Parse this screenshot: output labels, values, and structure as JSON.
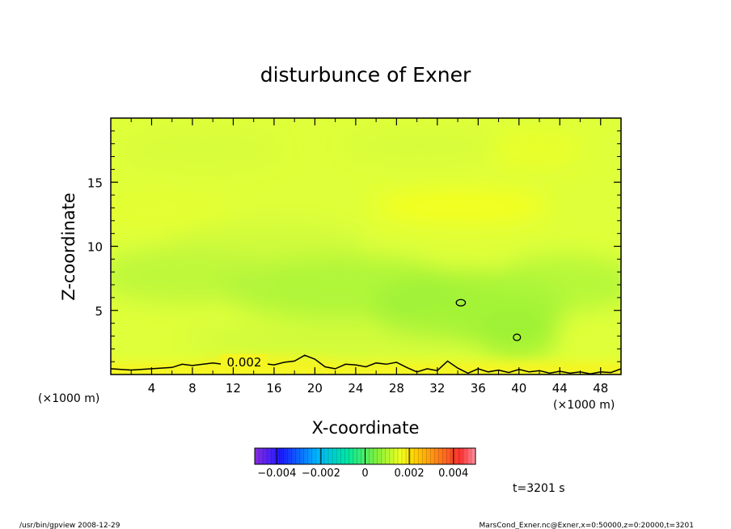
{
  "chart_data": {
    "type": "heatmap",
    "title": "disturbunce of Exner",
    "xlabel": "X-coordinate",
    "ylabel": "Z-coordinate",
    "x_unit": "(×1000 m)",
    "y_unit": "(×1000 m)",
    "xlim": [
      0,
      50
    ],
    "ylim": [
      0,
      20
    ],
    "x_ticks": [
      4,
      8,
      12,
      16,
      20,
      24,
      28,
      32,
      36,
      40,
      44,
      48
    ],
    "y_ticks": [
      5,
      10,
      15
    ],
    "colorbar": {
      "range": [
        -0.005,
        0.005
      ],
      "tick_values": [
        -0.004,
        -0.002,
        0,
        0.002,
        0.004
      ],
      "tick_labels": [
        "−0.004",
        "−0.002",
        "0",
        "0.002",
        "0.004"
      ]
    },
    "contour": {
      "level": 0.002,
      "label": "0.002",
      "line_x": [
        0,
        2,
        4,
        6,
        7,
        8,
        10,
        12,
        14,
        16,
        17,
        18,
        19,
        20,
        21,
        22,
        23,
        24,
        25,
        26,
        27,
        28,
        29,
        30,
        31,
        32,
        33,
        34,
        35,
        36,
        37,
        38,
        39,
        40,
        41,
        42,
        43,
        44,
        45,
        46,
        47,
        48,
        49,
        50
      ],
      "line_z": [
        0.45,
        0.35,
        0.45,
        0.55,
        0.8,
        0.7,
        0.9,
        0.7,
        0.95,
        0.75,
        0.95,
        1.05,
        1.5,
        1.2,
        0.6,
        0.45,
        0.8,
        0.75,
        0.6,
        0.9,
        0.8,
        0.95,
        0.55,
        0.2,
        0.45,
        0.3,
        1.05,
        0.5,
        0.1,
        0.45,
        0.2,
        0.35,
        0.15,
        0.4,
        0.2,
        0.3,
        0.1,
        0.25,
        0.1,
        0.2,
        0.05,
        0.2,
        0.15,
        0.45
      ],
      "closed_loops": [
        {
          "x": 34.3,
          "z": 5.6,
          "rx": 0.45,
          "rz": 0.25
        },
        {
          "x": 39.8,
          "z": 2.9,
          "rx": 0.35,
          "rz": 0.25
        }
      ]
    },
    "grid": false
  },
  "colors": {
    "background_field": "#dfff3a",
    "low_region": "#a8f53a",
    "high_region": "#f4ff1c",
    "surface_band": "#f5f522"
  },
  "annotations": {
    "time": "t=3201 s",
    "footer_left": "/usr/bin/gpview   2008-12-29",
    "footer_right": "MarsCond_Exner.nc@Exner,x=0:50000,z=0:20000,t=3201"
  }
}
